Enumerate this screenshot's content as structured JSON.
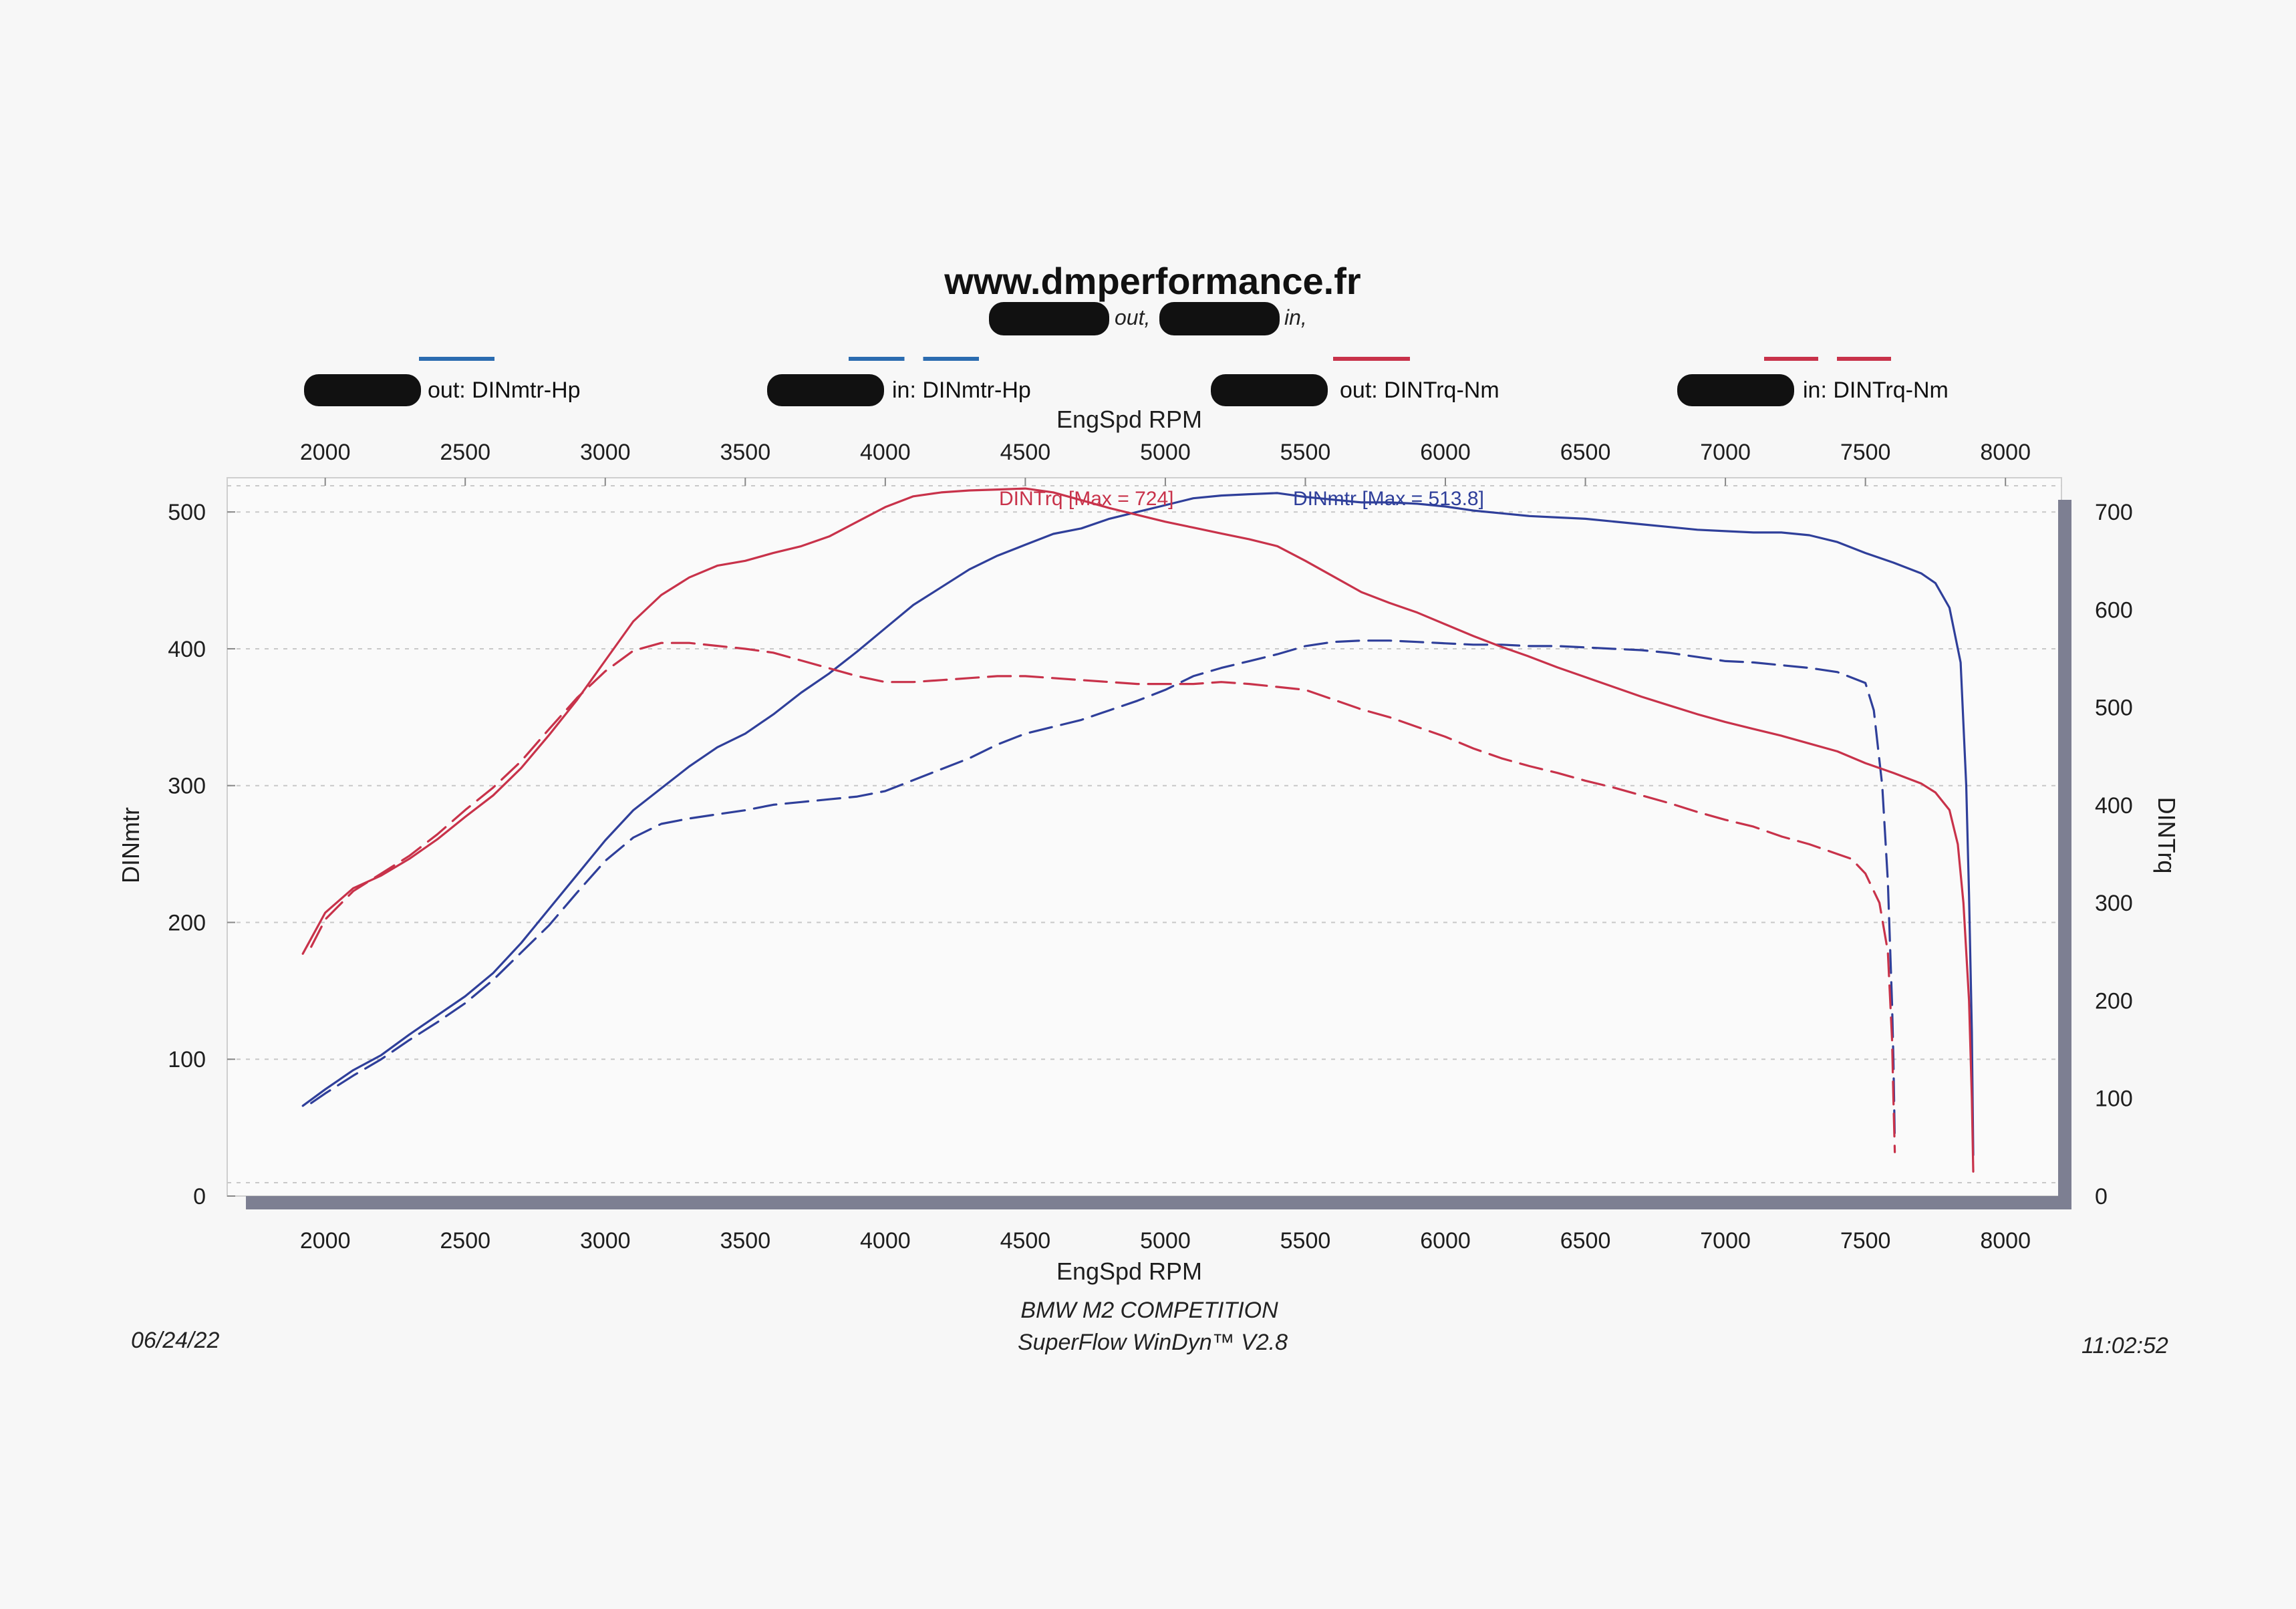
{
  "header": {
    "title": "www.dmperformance.fr",
    "subtitle_out": "out,",
    "subtitle_in": "in,"
  },
  "legend": [
    {
      "label": "out: DINmtr-Hp",
      "color": "#2b6cb0",
      "dash": false
    },
    {
      "label": "in: DINmtr-Hp",
      "color": "#2b6cb0",
      "dash": true
    },
    {
      "label": "out: DINTrq-Nm",
      "color": "#c8324a",
      "dash": false
    },
    {
      "label": "in: DINTrq-Nm",
      "color": "#c8324a",
      "dash": true
    }
  ],
  "max_labels": {
    "torque": "DINTrq [Max = 724]",
    "power": "DINmtr [Max = 513.8]"
  },
  "footer": {
    "date": "06/24/22",
    "car": "BMW M2 COMPETITION",
    "software": "SuperFlow WinDyn™ V2.8",
    "time": "11:02:52"
  },
  "colors": {
    "power": "#2f3f9a",
    "torque": "#c8324a",
    "legend_blue": "#2b6cb0",
    "legend_red": "#c8324a",
    "axis_frame": "#7d7f92",
    "grid": "#c8c8c8"
  },
  "chart_data": {
    "type": "line",
    "xlabel": "EngSpd RPM",
    "ylabel_left": "DINmtr",
    "ylabel_right": "DINTrq",
    "xlim": [
      1650,
      8200
    ],
    "ylim_left": [
      0,
      525
    ],
    "ylim_right": [
      0,
      735
    ],
    "xticks": [
      2000,
      2500,
      3000,
      3500,
      4000,
      4500,
      5000,
      5500,
      6000,
      6500,
      7000,
      7500,
      8000
    ],
    "yticks_left": [
      0,
      100,
      200,
      300,
      400,
      500
    ],
    "yticks_right": [
      0,
      100,
      200,
      300,
      400,
      500,
      600,
      700
    ],
    "grid": true,
    "series": [
      {
        "name": "out: DINmtr-Hp",
        "axis": "left",
        "dash": false,
        "points": [
          [
            1920,
            66
          ],
          [
            2000,
            78
          ],
          [
            2100,
            92
          ],
          [
            2200,
            103
          ],
          [
            2300,
            118
          ],
          [
            2400,
            132
          ],
          [
            2500,
            146
          ],
          [
            2600,
            163
          ],
          [
            2700,
            185
          ],
          [
            2800,
            210
          ],
          [
            2900,
            235
          ],
          [
            3000,
            260
          ],
          [
            3100,
            282
          ],
          [
            3200,
            298
          ],
          [
            3300,
            314
          ],
          [
            3400,
            328
          ],
          [
            3500,
            338
          ],
          [
            3600,
            352
          ],
          [
            3700,
            368
          ],
          [
            3800,
            382
          ],
          [
            3900,
            398
          ],
          [
            4000,
            415
          ],
          [
            4100,
            432
          ],
          [
            4200,
            445
          ],
          [
            4300,
            458
          ],
          [
            4400,
            468
          ],
          [
            4500,
            476
          ],
          [
            4600,
            484
          ],
          [
            4700,
            488
          ],
          [
            4800,
            495
          ],
          [
            4900,
            500
          ],
          [
            5000,
            505
          ],
          [
            5100,
            510
          ],
          [
            5200,
            512
          ],
          [
            5300,
            513
          ],
          [
            5400,
            513.8
          ],
          [
            5500,
            511
          ],
          [
            5600,
            509
          ],
          [
            5700,
            507
          ],
          [
            5800,
            507
          ],
          [
            5900,
            506
          ],
          [
            6000,
            504
          ],
          [
            6100,
            501
          ],
          [
            6200,
            499
          ],
          [
            6300,
            497
          ],
          [
            6400,
            496
          ],
          [
            6500,
            495
          ],
          [
            6600,
            493
          ],
          [
            6700,
            491
          ],
          [
            6800,
            489
          ],
          [
            6900,
            487
          ],
          [
            7000,
            486
          ],
          [
            7100,
            485
          ],
          [
            7200,
            485
          ],
          [
            7300,
            483
          ],
          [
            7400,
            478
          ],
          [
            7500,
            470
          ],
          [
            7600,
            463
          ],
          [
            7700,
            455
          ],
          [
            7750,
            448
          ],
          [
            7800,
            430
          ],
          [
            7840,
            390
          ],
          [
            7860,
            300
          ],
          [
            7870,
            220
          ],
          [
            7880,
            120
          ],
          [
            7885,
            30
          ]
        ]
      },
      {
        "name": "in: DINmtr-Hp",
        "axis": "left",
        "dash": true,
        "points": [
          [
            1950,
            68
          ],
          [
            2000,
            75
          ],
          [
            2100,
            88
          ],
          [
            2200,
            100
          ],
          [
            2300,
            114
          ],
          [
            2400,
            127
          ],
          [
            2500,
            141
          ],
          [
            2600,
            158
          ],
          [
            2700,
            178
          ],
          [
            2800,
            198
          ],
          [
            2900,
            222
          ],
          [
            3000,
            245
          ],
          [
            3100,
            262
          ],
          [
            3200,
            272
          ],
          [
            3300,
            276
          ],
          [
            3400,
            279
          ],
          [
            3500,
            282
          ],
          [
            3600,
            286
          ],
          [
            3700,
            288
          ],
          [
            3800,
            290
          ],
          [
            3900,
            292
          ],
          [
            4000,
            296
          ],
          [
            4100,
            304
          ],
          [
            4200,
            312
          ],
          [
            4300,
            320
          ],
          [
            4400,
            330
          ],
          [
            4500,
            338
          ],
          [
            4600,
            343
          ],
          [
            4700,
            348
          ],
          [
            4800,
            355
          ],
          [
            4900,
            362
          ],
          [
            5000,
            370
          ],
          [
            5100,
            380
          ],
          [
            5200,
            386
          ],
          [
            5300,
            391
          ],
          [
            5400,
            396
          ],
          [
            5500,
            402
          ],
          [
            5600,
            405
          ],
          [
            5700,
            406
          ],
          [
            5800,
            406
          ],
          [
            5900,
            405
          ],
          [
            6000,
            404
          ],
          [
            6100,
            403
          ],
          [
            6200,
            403
          ],
          [
            6300,
            402
          ],
          [
            6400,
            402
          ],
          [
            6500,
            401
          ],
          [
            6600,
            400
          ],
          [
            6700,
            399
          ],
          [
            6800,
            397
          ],
          [
            6900,
            394
          ],
          [
            7000,
            391
          ],
          [
            7100,
            390
          ],
          [
            7200,
            388
          ],
          [
            7300,
            386
          ],
          [
            7400,
            383
          ],
          [
            7500,
            375
          ],
          [
            7530,
            355
          ],
          [
            7560,
            300
          ],
          [
            7580,
            230
          ],
          [
            7595,
            140
          ],
          [
            7600,
            100
          ],
          [
            7605,
            40
          ]
        ]
      },
      {
        "name": "out: DINTrq-Nm",
        "axis": "right",
        "dash": false,
        "points": [
          [
            1920,
            248
          ],
          [
            2000,
            290
          ],
          [
            2100,
            315
          ],
          [
            2200,
            328
          ],
          [
            2300,
            345
          ],
          [
            2400,
            365
          ],
          [
            2500,
            388
          ],
          [
            2600,
            410
          ],
          [
            2700,
            438
          ],
          [
            2800,
            472
          ],
          [
            2900,
            508
          ],
          [
            3000,
            548
          ],
          [
            3100,
            588
          ],
          [
            3200,
            615
          ],
          [
            3300,
            633
          ],
          [
            3400,
            645
          ],
          [
            3500,
            650
          ],
          [
            3600,
            658
          ],
          [
            3700,
            665
          ],
          [
            3800,
            675
          ],
          [
            3900,
            690
          ],
          [
            4000,
            705
          ],
          [
            4100,
            716
          ],
          [
            4200,
            720
          ],
          [
            4300,
            722
          ],
          [
            4400,
            723
          ],
          [
            4500,
            724
          ],
          [
            4600,
            720
          ],
          [
            4700,
            712
          ],
          [
            4800,
            704
          ],
          [
            4900,
            697
          ],
          [
            5000,
            690
          ],
          [
            5100,
            684
          ],
          [
            5200,
            678
          ],
          [
            5300,
            672
          ],
          [
            5400,
            665
          ],
          [
            5500,
            650
          ],
          [
            5600,
            634
          ],
          [
            5700,
            618
          ],
          [
            5800,
            607
          ],
          [
            5900,
            597
          ],
          [
            6000,
            585
          ],
          [
            6100,
            573
          ],
          [
            6200,
            562
          ],
          [
            6300,
            552
          ],
          [
            6400,
            541
          ],
          [
            6500,
            531
          ],
          [
            6600,
            521
          ],
          [
            6700,
            511
          ],
          [
            6800,
            502
          ],
          [
            6900,
            493
          ],
          [
            7000,
            485
          ],
          [
            7100,
            478
          ],
          [
            7200,
            471
          ],
          [
            7300,
            463
          ],
          [
            7400,
            455
          ],
          [
            7500,
            443
          ],
          [
            7600,
            433
          ],
          [
            7700,
            422
          ],
          [
            7750,
            413
          ],
          [
            7800,
            395
          ],
          [
            7830,
            360
          ],
          [
            7850,
            300
          ],
          [
            7870,
            200
          ],
          [
            7880,
            100
          ],
          [
            7885,
            25
          ]
        ]
      },
      {
        "name": "in: DINTrq-Nm",
        "axis": "right",
        "dash": true,
        "points": [
          [
            1950,
            255
          ],
          [
            2000,
            283
          ],
          [
            2100,
            312
          ],
          [
            2200,
            330
          ],
          [
            2300,
            348
          ],
          [
            2400,
            370
          ],
          [
            2500,
            395
          ],
          [
            2600,
            418
          ],
          [
            2700,
            445
          ],
          [
            2800,
            478
          ],
          [
            2900,
            510
          ],
          [
            3000,
            537
          ],
          [
            3100,
            558
          ],
          [
            3200,
            566
          ],
          [
            3300,
            566
          ],
          [
            3400,
            563
          ],
          [
            3500,
            560
          ],
          [
            3600,
            556
          ],
          [
            3700,
            548
          ],
          [
            3800,
            540
          ],
          [
            3900,
            532
          ],
          [
            4000,
            526
          ],
          [
            4100,
            526
          ],
          [
            4200,
            528
          ],
          [
            4300,
            530
          ],
          [
            4400,
            532
          ],
          [
            4500,
            532
          ],
          [
            4600,
            530
          ],
          [
            4700,
            528
          ],
          [
            4800,
            526
          ],
          [
            4900,
            524
          ],
          [
            5000,
            524
          ],
          [
            5100,
            524
          ],
          [
            5200,
            526
          ],
          [
            5300,
            524
          ],
          [
            5400,
            521
          ],
          [
            5500,
            518
          ],
          [
            5600,
            508
          ],
          [
            5700,
            498
          ],
          [
            5800,
            490
          ],
          [
            5900,
            480
          ],
          [
            6000,
            470
          ],
          [
            6100,
            458
          ],
          [
            6200,
            448
          ],
          [
            6300,
            440
          ],
          [
            6400,
            433
          ],
          [
            6500,
            425
          ],
          [
            6600,
            418
          ],
          [
            6700,
            410
          ],
          [
            6800,
            402
          ],
          [
            6900,
            393
          ],
          [
            7000,
            385
          ],
          [
            7100,
            378
          ],
          [
            7200,
            368
          ],
          [
            7300,
            360
          ],
          [
            7400,
            350
          ],
          [
            7450,
            345
          ],
          [
            7500,
            330
          ],
          [
            7550,
            300
          ],
          [
            7580,
            250
          ],
          [
            7595,
            160
          ],
          [
            7600,
            100
          ],
          [
            7605,
            45
          ]
        ]
      }
    ]
  }
}
